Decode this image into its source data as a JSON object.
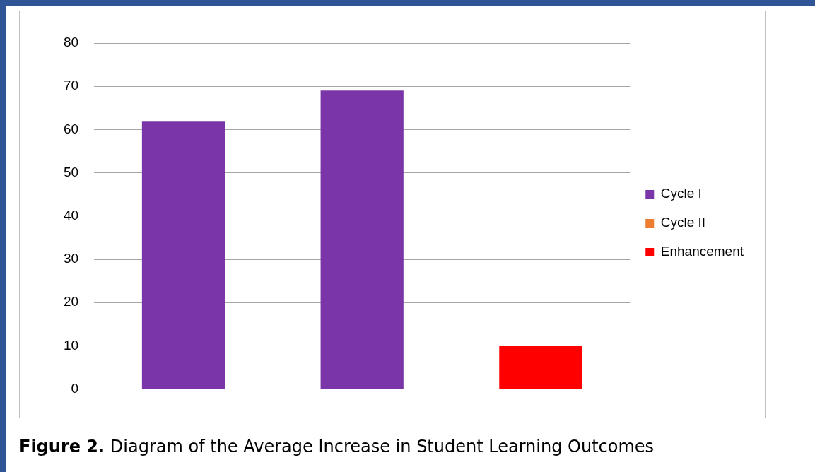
{
  "chart_data": {
    "type": "bar",
    "categories": [
      null,
      null,
      null
    ],
    "series": [
      {
        "name": "Cycle I",
        "color": "#7a36a8",
        "values": [
          62,
          69,
          null
        ]
      },
      {
        "name": "Cycle II",
        "color": "#ed7d31",
        "values": [
          null,
          null,
          null
        ]
      },
      {
        "name": "Enhancement",
        "color": "#ff0000",
        "values": [
          null,
          null,
          10
        ]
      }
    ],
    "ylim": [
      0,
      80
    ],
    "yticks": [
      0,
      10,
      20,
      30,
      40,
      50,
      60,
      70,
      80
    ],
    "grid": "y",
    "legend": "right",
    "annotations": [
      "Figure 2. Diagram of the Average Increase in Student Learning Outcomes"
    ]
  }
}
